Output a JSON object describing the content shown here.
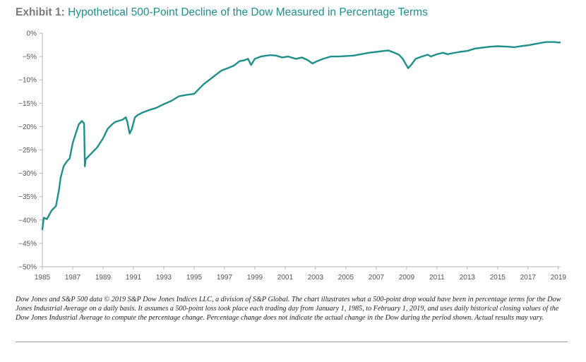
{
  "header": {
    "exhibit_label": "Exhibit 1:",
    "title": "Hypothetical 500-Point Decline of the Dow Measured in Percentage Terms"
  },
  "footnote": "Dow Jones and S&P 500 data © 2019 S&P Dow Jones Indices LLC, a division of S&P Global. The chart illustrates what a 500-point drop would have been in percentage terms for the Dow Jones Industrial Average on a daily basis. It assumes a 500-point loss took place each trading day from January 1, 1985, to February 1, 2019, and uses daily historical closing values of the Dow Jones Industrial Average to compute the percentage change. Percentage change does not indicate the actual change in the Dow during the period shown. Actual results may vary.",
  "colors": {
    "title_accent": "#1f8f8b",
    "line": "#1f8f8b",
    "axis": "#b5b5b5",
    "label_grey": "#7a7a7a"
  },
  "chart_data": {
    "type": "line",
    "title": "Hypothetical 500-Point Decline of the Dow Measured in Percentage Terms",
    "xlabel": "",
    "ylabel": "",
    "xlim": [
      1985,
      2019.1
    ],
    "ylim": [
      -50,
      0
    ],
    "grid": false,
    "x_tick_labels": [
      "1985",
      "1987",
      "1989",
      "1991",
      "1993",
      "1995",
      "1997",
      "1999",
      "2001",
      "2003",
      "2005",
      "2007",
      "2009",
      "2011",
      "2013",
      "2015",
      "2017",
      "2019"
    ],
    "x_ticks": [
      1985,
      1987,
      1989,
      1991,
      1993,
      1995,
      1997,
      1999,
      2001,
      2003,
      2005,
      2007,
      2009,
      2011,
      2013,
      2015,
      2017,
      2019
    ],
    "y_tick_labels": [
      "0%",
      "−5%",
      "−10%",
      "−15%",
      "−20%",
      "−25%",
      "−30%",
      "−35%",
      "−40%",
      "−45%",
      "−50%"
    ],
    "y_ticks": [
      0,
      -5,
      -10,
      -15,
      -20,
      -25,
      -30,
      -35,
      -40,
      -45,
      -50
    ],
    "series": [
      {
        "x": [
          1985.0,
          1985.1,
          1985.3,
          1985.6,
          1985.9,
          1986.1,
          1986.2,
          1986.4,
          1986.6,
          1986.8,
          1987.0,
          1987.2,
          1987.4,
          1987.6,
          1987.75,
          1987.8,
          1987.85,
          1988.0,
          1988.3,
          1988.6,
          1989.0,
          1989.3,
          1989.6,
          1989.8,
          1990.0,
          1990.3,
          1990.5,
          1990.6,
          1990.75,
          1990.9,
          1991.1,
          1991.3,
          1991.6,
          1992.0,
          1992.5,
          1993.0,
          1993.5,
          1994.0,
          1994.5,
          1995.0,
          1995.3,
          1995.6,
          1996.0,
          1996.4,
          1996.8,
          1997.2,
          1997.6,
          1998.0,
          1998.3,
          1998.55,
          1998.75,
          1999.0,
          1999.4,
          2000.0,
          2000.4,
          2000.8,
          2001.2,
          2001.7,
          2002.1,
          2002.5,
          2002.8,
          2003.1,
          2003.5,
          2004.0,
          2004.5,
          2005.0,
          2005.5,
          2006.0,
          2006.5,
          2007.0,
          2007.5,
          2007.8,
          2008.2,
          2008.5,
          2008.75,
          2009.1,
          2009.3,
          2009.6,
          2010.0,
          2010.4,
          2010.6,
          2011.0,
          2011.4,
          2011.7,
          2012.0,
          2012.5,
          2013.0,
          2013.5,
          2014.0,
          2014.5,
          2015.0,
          2015.7,
          2016.1,
          2016.5,
          2017.0,
          2017.5,
          2018.0,
          2018.2,
          2018.8,
          2018.95,
          2019.1
        ],
        "y": [
          -42.0,
          -39.5,
          -39.8,
          -38.0,
          -37.0,
          -33.5,
          -31.0,
          -28.5,
          -27.5,
          -26.8,
          -23.5,
          -21.5,
          -19.5,
          -18.8,
          -19.3,
          -28.5,
          -27.0,
          -26.5,
          -25.5,
          -24.5,
          -22.5,
          -20.5,
          -19.5,
          -19.0,
          -18.8,
          -18.5,
          -18.0,
          -19.0,
          -21.5,
          -20.5,
          -18.0,
          -17.5,
          -17.0,
          -16.5,
          -16.0,
          -15.2,
          -14.5,
          -13.5,
          -13.2,
          -13.0,
          -12.0,
          -11.0,
          -10.0,
          -9.0,
          -8.0,
          -7.5,
          -7.0,
          -6.0,
          -5.8,
          -5.5,
          -6.8,
          -5.5,
          -5.0,
          -4.7,
          -4.8,
          -5.2,
          -5.0,
          -5.5,
          -5.2,
          -5.8,
          -6.5,
          -6.0,
          -5.5,
          -5.0,
          -5.0,
          -4.9,
          -4.8,
          -4.5,
          -4.2,
          -4.0,
          -3.8,
          -3.7,
          -4.2,
          -4.6,
          -5.5,
          -7.5,
          -6.8,
          -5.5,
          -5.0,
          -4.6,
          -5.0,
          -4.5,
          -4.2,
          -4.5,
          -4.3,
          -4.0,
          -3.8,
          -3.3,
          -3.1,
          -2.9,
          -2.8,
          -2.9,
          -3.0,
          -2.8,
          -2.6,
          -2.3,
          -2.0,
          -1.9,
          -1.9,
          -2.0,
          -2.0
        ]
      }
    ]
  }
}
